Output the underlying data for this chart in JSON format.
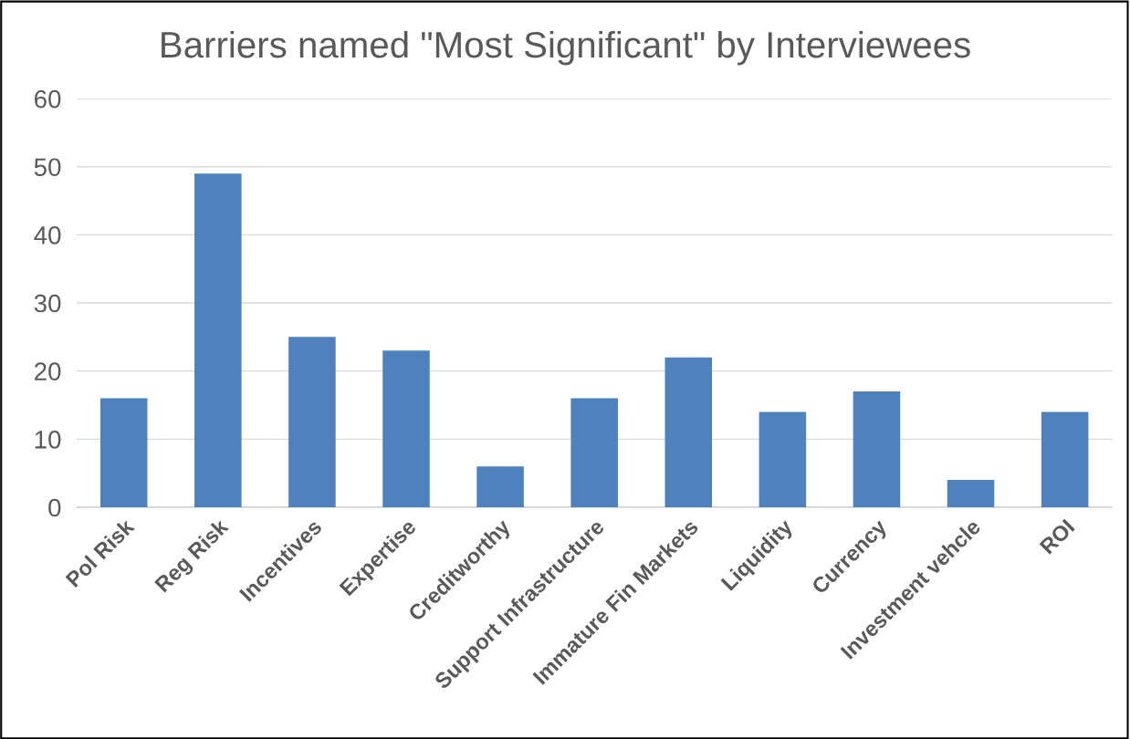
{
  "chart_data": {
    "type": "bar",
    "title": "Barriers named \"Most Significant\" by Interviewees",
    "categories": [
      "Pol Risk",
      "Reg Risk",
      "Incentives",
      "Expertise",
      "Creditworthy",
      "Support Infrastructure",
      "Immature Fin Markets",
      "Liquidity",
      "Currency",
      "Investment vehcle",
      "ROI"
    ],
    "values": [
      16,
      49,
      25,
      23,
      6,
      16,
      22,
      14,
      17,
      4,
      14
    ],
    "color": "#4f81bd",
    "ylim": [
      0,
      60
    ],
    "yticks": [
      0,
      10,
      20,
      30,
      40,
      50,
      60
    ],
    "grid": "y",
    "legend": false
  }
}
